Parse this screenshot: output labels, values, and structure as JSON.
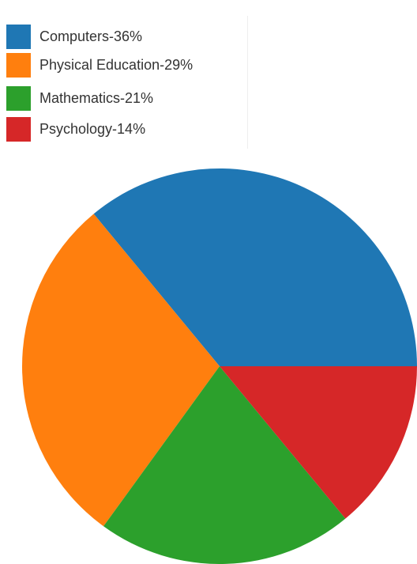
{
  "chart_data": {
    "type": "pie",
    "slices": [
      {
        "label": "Computers-36%",
        "category": "Computers",
        "value": 36,
        "color": "#1f77b4"
      },
      {
        "label": "Physical Education-29%",
        "category": "Physical Education",
        "value": 29,
        "color": "#ff7f0e"
      },
      {
        "label": "Mathematics-21%",
        "category": "Mathematics",
        "value": 21,
        "color": "#2ca02c"
      },
      {
        "label": "Psychology-14%",
        "category": "Psychology",
        "value": 14,
        "color": "#d62728"
      }
    ],
    "legend_position": "top-left",
    "start_angle_deg": 0,
    "direction": "counterclockwise"
  }
}
